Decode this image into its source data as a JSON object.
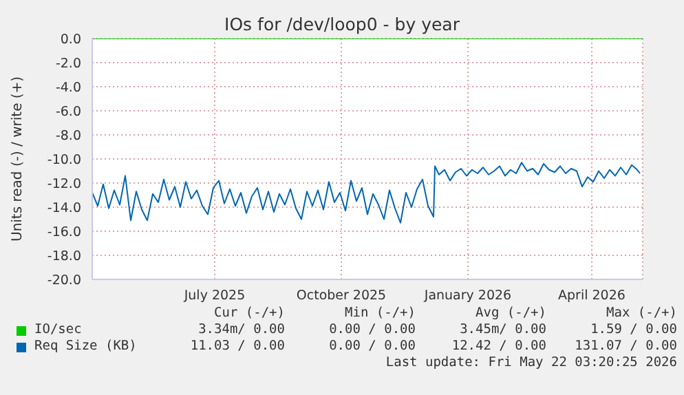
{
  "chart_data": {
    "type": "line",
    "title": "IOs for /dev/loop0 - by year",
    "ylabel": "Units read (-) / write (+)",
    "xlim": [
      "2025-04-17",
      "2026-05-22"
    ],
    "xticks": [
      {
        "value": "2025-07-15",
        "label": "July 2025"
      },
      {
        "value": "2025-10-15",
        "label": "October 2025"
      },
      {
        "value": "2026-01-15",
        "label": "January 2026"
      },
      {
        "value": "2026-04-15",
        "label": "April 2026"
      }
    ],
    "ylim": [
      -20,
      0
    ],
    "yticks": [
      {
        "value": -20,
        "label": "-20.0"
      },
      {
        "value": -18,
        "label": "-18.0"
      },
      {
        "value": -16,
        "label": "-16.0"
      },
      {
        "value": -14,
        "label": "-14.0"
      },
      {
        "value": -12,
        "label": "-12.0"
      },
      {
        "value": -10,
        "label": "-10.0"
      },
      {
        "value": -8,
        "label": "-8.0"
      },
      {
        "value": -6,
        "label": "-6.0"
      },
      {
        "value": -4,
        "label": "-4.0"
      },
      {
        "value": -2,
        "label": "-2.0"
      },
      {
        "value": 0,
        "label": "0.0"
      }
    ],
    "grid": true,
    "legend": "bottom",
    "marker": "none",
    "line_style": "solid",
    "series": [
      {
        "name": "IO/sec",
        "color": "#00cc00",
        "x": [
          "2025-04-17",
          "2026-05-22"
        ],
        "values": [
          0,
          0
        ]
      },
      {
        "name": "Req Size (KB)",
        "color": "#0066b3",
        "x": [
          "2025-04-17",
          "2025-04-21",
          "2025-04-25",
          "2025-04-29",
          "2025-05-03",
          "2025-05-07",
          "2025-05-11",
          "2025-05-15",
          "2025-05-19",
          "2025-05-23",
          "2025-05-27",
          "2025-05-31",
          "2025-06-04",
          "2025-06-08",
          "2025-06-12",
          "2025-06-16",
          "2025-06-20",
          "2025-06-24",
          "2025-06-28",
          "2025-07-02",
          "2025-07-06",
          "2025-07-10",
          "2025-07-14",
          "2025-07-18",
          "2025-07-22",
          "2025-07-26",
          "2025-07-30",
          "2025-08-03",
          "2025-08-07",
          "2025-08-11",
          "2025-08-15",
          "2025-08-19",
          "2025-08-23",
          "2025-08-27",
          "2025-08-31",
          "2025-09-04",
          "2025-09-08",
          "2025-09-12",
          "2025-09-16",
          "2025-09-20",
          "2025-09-24",
          "2025-09-28",
          "2025-10-02",
          "2025-10-06",
          "2025-10-10",
          "2025-10-14",
          "2025-10-18",
          "2025-10-22",
          "2025-10-26",
          "2025-10-30",
          "2025-11-03",
          "2025-11-07",
          "2025-11-11",
          "2025-11-15",
          "2025-11-19",
          "2025-11-23",
          "2025-11-27",
          "2025-12-01",
          "2025-12-05",
          "2025-12-09",
          "2025-12-13",
          "2025-12-17",
          "2025-12-21",
          "2025-12-22",
          "2025-12-25",
          "2025-12-29",
          "2026-01-02",
          "2026-01-06",
          "2026-01-10",
          "2026-01-14",
          "2026-01-18",
          "2026-01-22",
          "2026-01-26",
          "2026-01-30",
          "2026-02-03",
          "2026-02-07",
          "2026-02-11",
          "2026-02-15",
          "2026-02-19",
          "2026-02-23",
          "2026-02-27",
          "2026-03-03",
          "2026-03-07",
          "2026-03-11",
          "2026-03-15",
          "2026-03-19",
          "2026-03-23",
          "2026-03-27",
          "2026-03-31",
          "2026-04-04",
          "2026-04-08",
          "2026-04-12",
          "2026-04-16",
          "2026-04-20",
          "2026-04-24",
          "2026-04-28",
          "2026-05-02",
          "2026-05-06",
          "2026-05-10",
          "2026-05-14",
          "2026-05-18",
          "2026-05-20"
        ],
        "values": [
          -12.8,
          -13.9,
          -12.1,
          -14.1,
          -12.6,
          -13.8,
          -11.4,
          -15.1,
          -12.7,
          -14.2,
          -15.1,
          -12.9,
          -13.6,
          -11.7,
          -13.4,
          -12.3,
          -14.0,
          -11.9,
          -13.3,
          -12.6,
          -13.9,
          -14.6,
          -12.4,
          -11.8,
          -13.7,
          -12.5,
          -13.9,
          -12.8,
          -14.5,
          -13.1,
          -12.4,
          -14.2,
          -12.7,
          -14.4,
          -12.9,
          -13.8,
          -12.5,
          -14.1,
          -15.0,
          -12.7,
          -13.9,
          -12.6,
          -14.2,
          -11.9,
          -13.6,
          -12.8,
          -14.3,
          -11.8,
          -13.5,
          -12.4,
          -14.6,
          -12.9,
          -13.8,
          -15.0,
          -12.6,
          -14.1,
          -15.3,
          -12.8,
          -14.0,
          -12.5,
          -11.7,
          -13.9,
          -14.8,
          -10.6,
          -11.3,
          -10.9,
          -11.8,
          -11.1,
          -10.8,
          -11.4,
          -10.9,
          -11.2,
          -10.7,
          -11.3,
          -11.0,
          -10.6,
          -11.4,
          -10.9,
          -11.2,
          -10.3,
          -11.0,
          -10.8,
          -11.3,
          -10.4,
          -10.9,
          -11.1,
          -10.6,
          -11.2,
          -10.8,
          -11.0,
          -12.3,
          -11.5,
          -11.9,
          -11.0,
          -11.6,
          -10.9,
          -11.4,
          -10.7,
          -11.3,
          -10.5,
          -10.9,
          -11.2
        ]
      }
    ],
    "annotations": [
      "Cur (-/+)",
      "Min (-/+)",
      "Avg (-/+)",
      "Max (-/+)",
      "3.34m/ 0.00",
      "0.00 / 0.00",
      "3.45m/ 0.00",
      "1.59 / 0.00",
      "11.03 / 0.00",
      "0.00 / 0.00",
      "12.42 / 0.00",
      "131.07 / 0.00",
      "Last update: Fri May 22 03:20:25 2026"
    ]
  }
}
